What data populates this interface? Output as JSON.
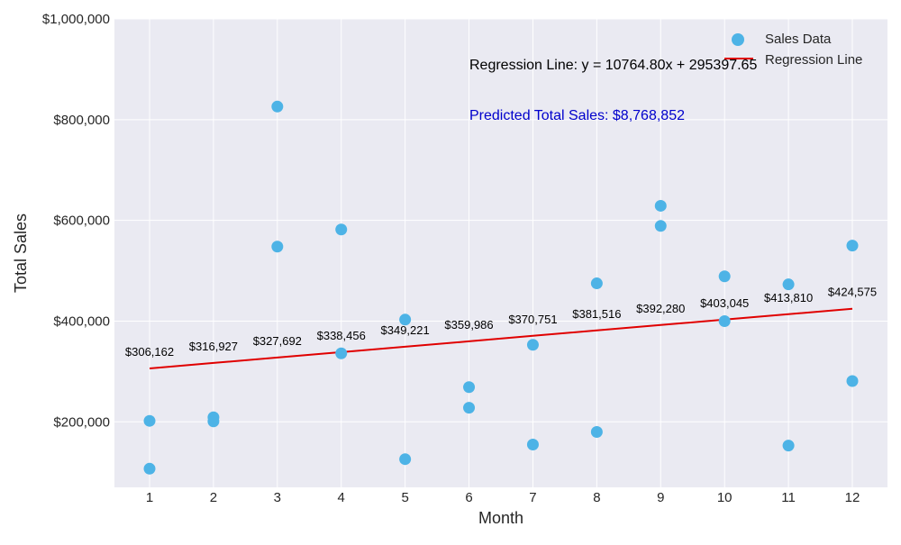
{
  "chart_data": {
    "type": "scatter",
    "title": "",
    "xlabel": "Month",
    "ylabel": "Total Sales",
    "xlim": [
      0.45,
      12.55
    ],
    "ylim": [
      70000,
      1000000
    ],
    "xticks": [
      1,
      2,
      3,
      4,
      5,
      6,
      7,
      8,
      9,
      10,
      11,
      12
    ],
    "yticks": [
      200000,
      400000,
      600000,
      800000,
      1000000
    ],
    "ytick_labels": [
      "$200,000",
      "$400,000",
      "$600,000",
      "$800,000",
      "$1,000,000"
    ],
    "grid": true,
    "legend_position": "top-right",
    "series": [
      {
        "name": "Sales Data",
        "kind": "scatter",
        "color": "#4db3e6",
        "points": [
          [
            1,
            202000
          ],
          [
            1,
            107000
          ],
          [
            2,
            209000
          ],
          [
            2,
            201000
          ],
          [
            3,
            826000
          ],
          [
            3,
            548000
          ],
          [
            4,
            582000
          ],
          [
            4,
            336000
          ],
          [
            5,
            403000
          ],
          [
            5,
            126000
          ],
          [
            6,
            269000
          ],
          [
            6,
            228000
          ],
          [
            7,
            353000
          ],
          [
            7,
            155000
          ],
          [
            8,
            475000
          ],
          [
            8,
            180000
          ],
          [
            9,
            629000
          ],
          [
            9,
            589000
          ],
          [
            10,
            489000
          ],
          [
            10,
            400000
          ],
          [
            11,
            473000
          ],
          [
            11,
            153000
          ],
          [
            12,
            550000
          ],
          [
            12,
            281000
          ]
        ]
      },
      {
        "name": "Regression Line",
        "kind": "line",
        "color": "#e00000",
        "x": [
          1,
          2,
          3,
          4,
          5,
          6,
          7,
          8,
          9,
          10,
          11,
          12
        ],
        "y": [
          306162,
          316927,
          327692,
          338456,
          349221,
          359986,
          370751,
          381516,
          392280,
          403045,
          413810,
          424575
        ],
        "labels": [
          "$306,162",
          "$316,927",
          "$327,692",
          "$338,456",
          "$349,221",
          "$359,986",
          "$370,751",
          "$381,516",
          "$392,280",
          "$403,045",
          "$413,810",
          "$424,575"
        ]
      }
    ],
    "annotations": {
      "regression_text": "Regression Line: y = 10764.80x + 295397.65",
      "predicted_text": "Predicted Total Sales: $8,768,852",
      "predicted_color": "#0000cc"
    }
  }
}
